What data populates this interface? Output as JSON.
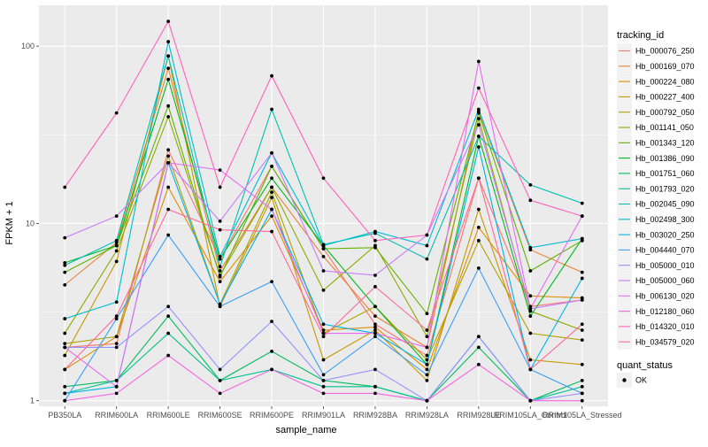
{
  "chart_data": {
    "type": "line",
    "xlabel": "sample_name",
    "ylabel": "FPKM + 1",
    "y_scale": "log10",
    "ylim": [
      0.93,
      170
    ],
    "y_ticks": [
      {
        "value": 1,
        "label": "1"
      },
      {
        "value": 10,
        "label": "10"
      },
      {
        "value": 100,
        "label": "100"
      }
    ],
    "categories": [
      "PB350LA",
      "RRIM600LA",
      "RRIM600LE",
      "RRIM600SE",
      "RRIM600PE",
      "RRIM901LA",
      "RRIM928BA",
      "RRIM928LA",
      "RRIM928LE",
      "RRIM105LA_Control",
      "RRIM105LA_Stressed"
    ],
    "legend": {
      "tracking_title": "tracking_id",
      "status_title": "quant_status",
      "status_label": "OK",
      "position": "right"
    },
    "series": [
      {
        "name": "Hb_000076_250",
        "color": "#F8766D",
        "values": [
          2.0,
          2.1,
          26,
          6.3,
          21,
          7.2,
          2.7,
          1.8,
          18,
          3.4,
          3.7
        ]
      },
      {
        "name": "Hb_000169_070",
        "color": "#EC8239",
        "values": [
          4.5,
          7.8,
          75,
          5.4,
          16,
          6.5,
          3.0,
          2.0,
          43,
          7.1,
          5.3
        ]
      },
      {
        "name": "Hb_000224_080",
        "color": "#DB8E00",
        "values": [
          1.5,
          2.3,
          16,
          4.7,
          11,
          2.5,
          2.6,
          1.5,
          9.5,
          3.9,
          3.8
        ]
      },
      {
        "name": "Hb_000227_400",
        "color": "#C79800",
        "values": [
          1.8,
          6.1,
          88,
          3.4,
          14,
          1.7,
          2.5,
          1.3,
          12,
          1.7,
          1.6
        ]
      },
      {
        "name": "Hb_000792_050",
        "color": "#AEA200",
        "values": [
          2.1,
          2.3,
          24,
          3.5,
          15,
          2.4,
          3.4,
          1.7,
          8.0,
          2.4,
          2.2
        ]
      },
      {
        "name": "Hb_001141_050",
        "color": "#8FAA00",
        "values": [
          2.4,
          7.0,
          40,
          5.1,
          16,
          4.2,
          7.5,
          2.3,
          39,
          3.2,
          2.5
        ]
      },
      {
        "name": "Hb_001343_120",
        "color": "#64B200",
        "values": [
          5.3,
          7.5,
          46,
          5.0,
          21,
          7.2,
          7.3,
          3.1,
          42,
          5.4,
          8.0
        ]
      },
      {
        "name": "Hb_001386_090",
        "color": "#00B81B",
        "values": [
          6.0,
          7.5,
          65,
          6.3,
          18,
          7.5,
          3.4,
          1.6,
          31,
          3.0,
          8.2
        ]
      },
      {
        "name": "Hb_001751_060",
        "color": "#00BD5C",
        "values": [
          1.2,
          1.3,
          3.0,
          1.3,
          1.9,
          1.3,
          1.2,
          1.0,
          2.0,
          1.0,
          1.3
        ]
      },
      {
        "name": "Hb_001793_020",
        "color": "#00C08E",
        "values": [
          1.1,
          1.3,
          2.4,
          1.3,
          1.5,
          1.2,
          1.2,
          1.0,
          2.3,
          1.0,
          1.2
        ]
      },
      {
        "name": "Hb_002045_090",
        "color": "#00C1B2",
        "values": [
          5.8,
          8.0,
          88,
          5.7,
          44,
          7.6,
          8.8,
          6.3,
          31,
          16.5,
          13
        ]
      },
      {
        "name": "Hb_002498_300",
        "color": "#00BCD1",
        "values": [
          2.9,
          3.6,
          106,
          6.5,
          25,
          7.5,
          9.0,
          7.5,
          44,
          7.3,
          8.2
        ]
      },
      {
        "name": "Hb_003020_250",
        "color": "#00B3EA",
        "values": [
          1.1,
          1.2,
          22,
          3.5,
          12,
          2.7,
          2.4,
          1.6,
          27,
          1.5,
          4.9
        ]
      },
      {
        "name": "Hb_004440_070",
        "color": "#3CA1F7",
        "values": [
          1.0,
          2.9,
          8.6,
          3.4,
          4.7,
          1.4,
          2.3,
          1.4,
          5.6,
          1.5,
          1.1
        ]
      },
      {
        "name": "Hb_005000_010",
        "color": "#9590FF",
        "values": [
          2.0,
          2.0,
          3.4,
          1.5,
          2.8,
          1.3,
          1.5,
          1.0,
          2.3,
          1.0,
          1.1
        ]
      },
      {
        "name": "Hb_005000_060",
        "color": "#C77CFF",
        "values": [
          8.3,
          11,
          22,
          10.3,
          25,
          5.4,
          5.1,
          8.6,
          36,
          3.3,
          3.7
        ]
      },
      {
        "name": "Hb_006130_020",
        "color": "#E76BF3",
        "values": [
          2.0,
          1.2,
          22,
          20,
          12,
          2.4,
          2.4,
          2.0,
          82,
          3.3,
          11
        ]
      },
      {
        "name": "Hb_012180_060",
        "color": "#F763E0",
        "values": [
          1.0,
          1.1,
          1.8,
          1.1,
          1.5,
          1.1,
          1.1,
          1.0,
          1.6,
          1.0,
          1.0
        ]
      },
      {
        "name": "Hb_014320_010",
        "color": "#FF62BC",
        "values": [
          16,
          42,
          138,
          16,
          68,
          18,
          8.0,
          8.6,
          58,
          13.5,
          11
        ]
      },
      {
        "name": "Hb_034579_020",
        "color": "#FF6A98",
        "values": [
          1.5,
          3.0,
          12,
          9.2,
          9.0,
          2.3,
          4.4,
          2.5,
          18,
          1.5,
          2.7
        ]
      }
    ]
  }
}
